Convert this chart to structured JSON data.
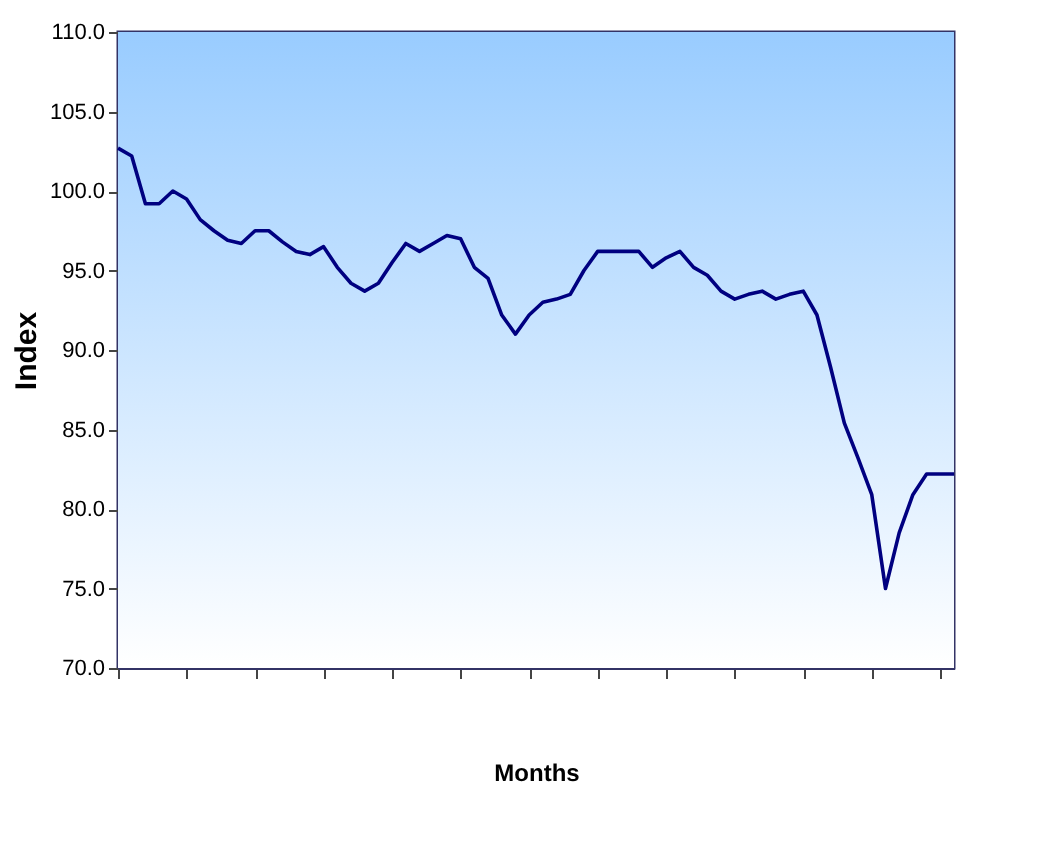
{
  "chart_data": {
    "type": "line",
    "xlabel": "Months",
    "ylabel": "Index",
    "categories": [
      null,
      null,
      null,
      null,
      null,
      null,
      null,
      null,
      null,
      null,
      null,
      null,
      null,
      null,
      null,
      null,
      null,
      null,
      null,
      null,
      null,
      null,
      null,
      null,
      null,
      null,
      null,
      null,
      null,
      null,
      null,
      null,
      null,
      null,
      null,
      null,
      null,
      null,
      null,
      null,
      null,
      null,
      null,
      null,
      null,
      null,
      null,
      null,
      null,
      null,
      null,
      null,
      null,
      null,
      null,
      null,
      null,
      null,
      null,
      null,
      null,
      null
    ],
    "series": [
      {
        "color": "#000080",
        "values": [
          102.7,
          102.2,
          99.2,
          99.2,
          100.0,
          99.5,
          98.2,
          97.5,
          96.9,
          96.7,
          97.5,
          97.5,
          96.8,
          96.2,
          96.0,
          96.5,
          95.2,
          94.2,
          93.7,
          94.2,
          95.5,
          96.7,
          96.2,
          96.7,
          97.2,
          97.0,
          95.2,
          94.5,
          92.2,
          91.0,
          92.2,
          93.0,
          93.2,
          93.5,
          95.0,
          96.2,
          96.2,
          96.2,
          96.2,
          95.2,
          95.8,
          96.2,
          95.2,
          94.7,
          93.7,
          93.2,
          93.5,
          93.7,
          93.2,
          93.5,
          93.7,
          92.2,
          88.9,
          85.4,
          83.2,
          80.9,
          75.0,
          78.5,
          80.9,
          82.2,
          82.2,
          82.2
        ]
      }
    ],
    "ylim": [
      70,
      110
    ],
    "yticks": [
      {
        "value": 70,
        "label": "70.0"
      },
      {
        "value": 75,
        "label": "75.0"
      },
      {
        "value": 80,
        "label": "80.0"
      },
      {
        "value": 85,
        "label": "85.0"
      },
      {
        "value": 90,
        "label": "90.0"
      },
      {
        "value": 95,
        "label": "95.0"
      },
      {
        "value": 100,
        "label": "100.0"
      },
      {
        "value": 105,
        "label": "105.0"
      },
      {
        "value": 110,
        "label": "110.0"
      }
    ],
    "grid": false,
    "legend": false,
    "marker": "none",
    "line_style": "solid"
  }
}
